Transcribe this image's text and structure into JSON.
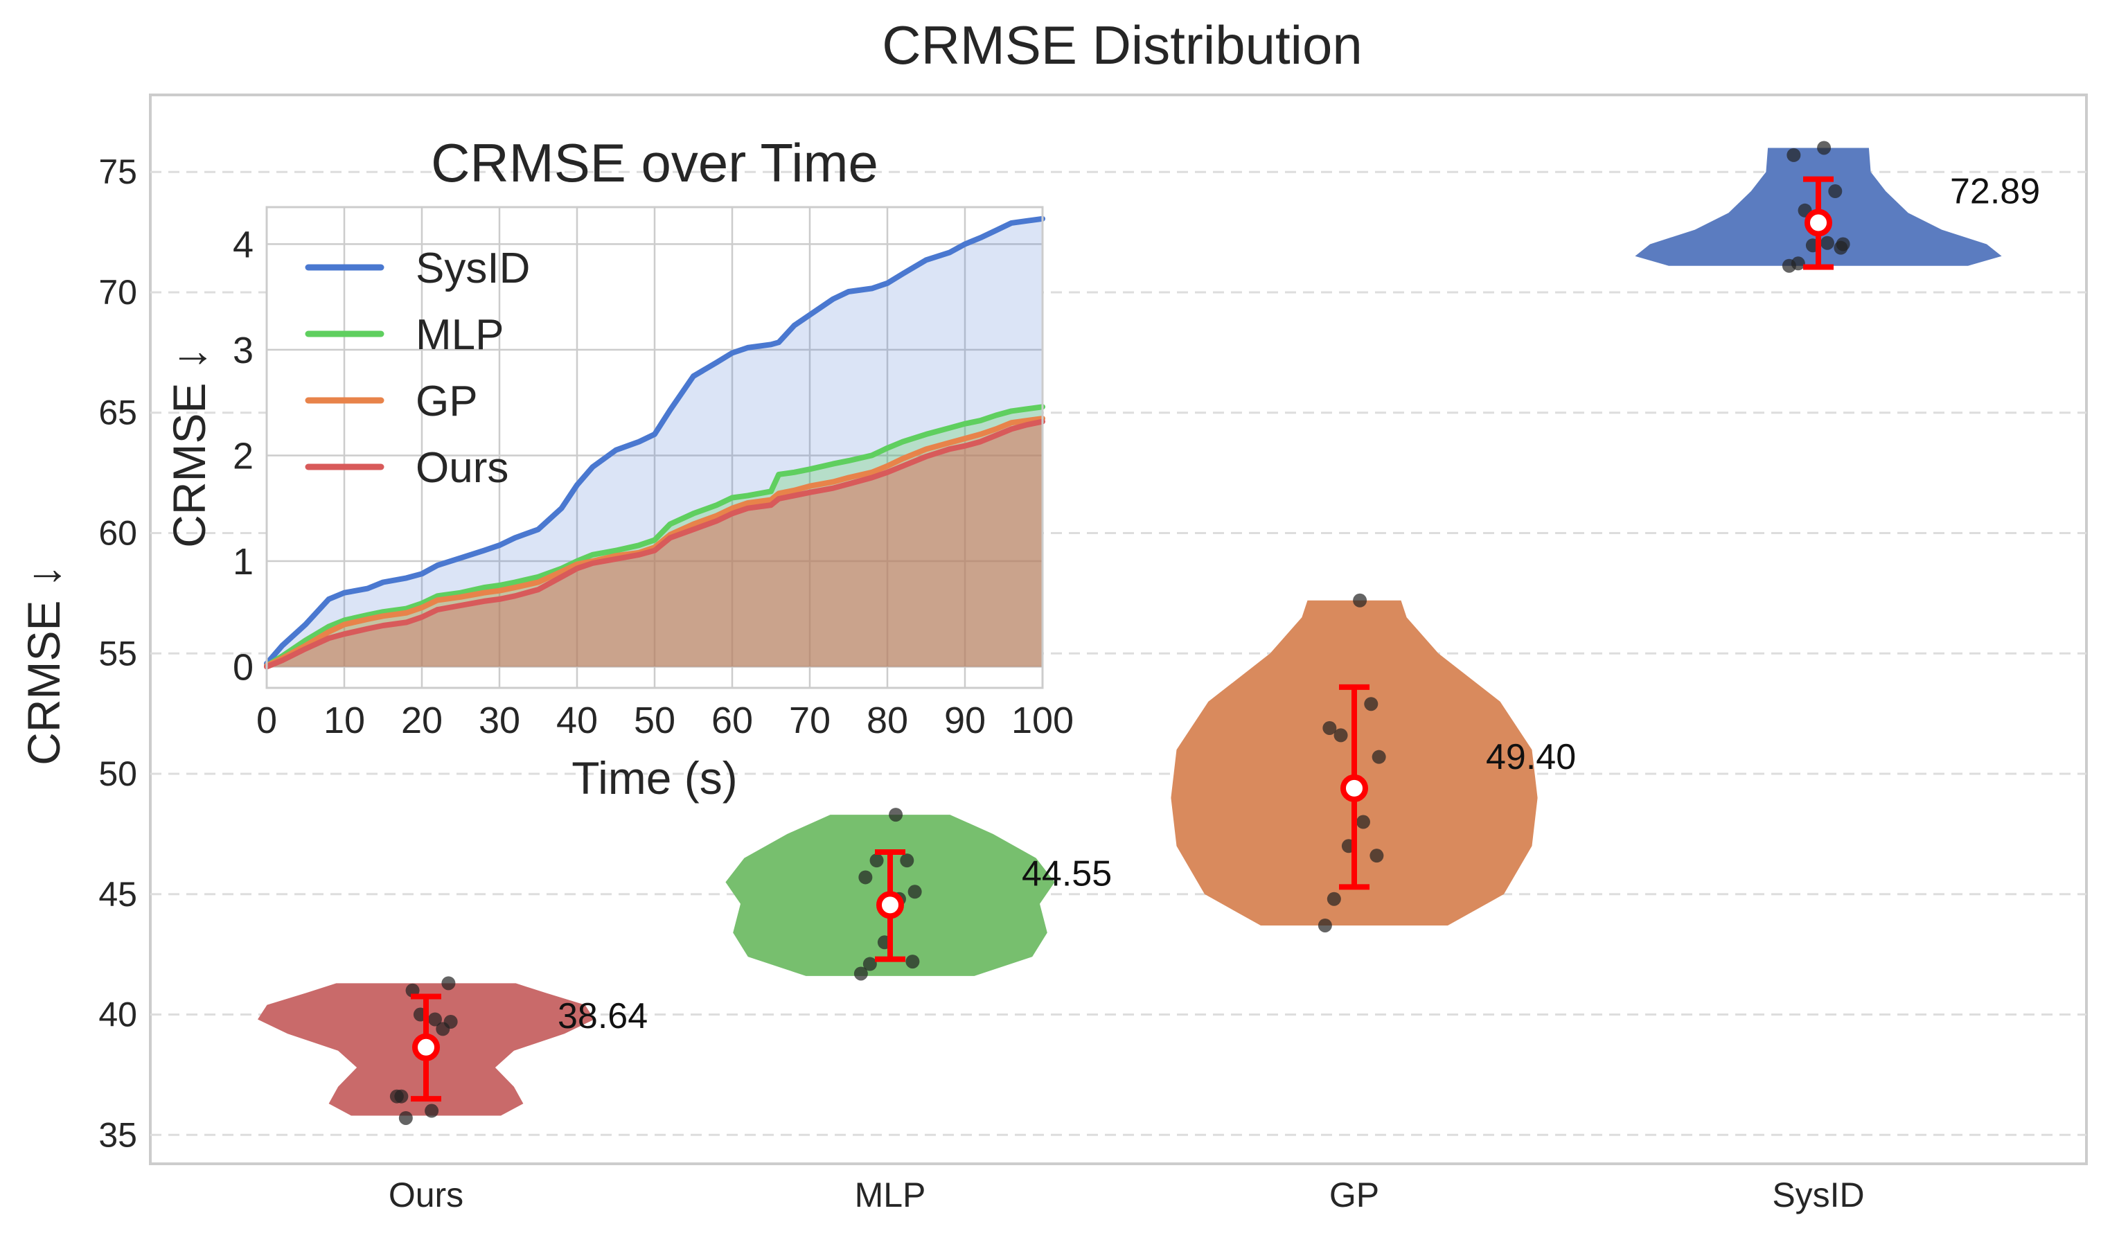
{
  "chart_data": [
    {
      "type": "violin",
      "title": "CRMSE Distribution",
      "xlabel": "",
      "ylabel": "CRMSE ↓",
      "categories": [
        "Ours",
        "MLP",
        "GP",
        "SysID"
      ],
      "ylim": [
        33.8,
        78.2
      ],
      "yticks": [
        35,
        40,
        45,
        50,
        55,
        60,
        65,
        70,
        75
      ],
      "grid": "y-dashed",
      "colors": [
        "#c96a6a",
        "#77bf6e",
        "#d98a5d",
        "#5b7cc0"
      ],
      "errorbar_color": "#ff0000",
      "violins": [
        {
          "name": "Ours",
          "mean": 38.64,
          "label": "38.64",
          "err_low": 36.5,
          "err_high": 40.75,
          "points": [
            36.6,
            35.7,
            41.3,
            40.0,
            39.8,
            39.7,
            41.0,
            39.4,
            36.6,
            36.0
          ],
          "shape": [
            [
              35.8,
              0.4
            ],
            [
              36.3,
              0.52
            ],
            [
              37.0,
              0.47
            ],
            [
              37.8,
              0.37
            ],
            [
              38.5,
              0.47
            ],
            [
              39.2,
              0.74
            ],
            [
              39.8,
              0.9
            ],
            [
              40.4,
              0.85
            ],
            [
              40.9,
              0.64
            ],
            [
              41.3,
              0.48
            ]
          ]
        },
        {
          "name": "MLP",
          "mean": 44.55,
          "label": "44.55",
          "err_low": 42.3,
          "err_high": 46.75,
          "points": [
            41.7,
            42.1,
            42.2,
            43.0,
            44.8,
            45.1,
            46.4,
            46.4,
            45.7,
            48.3
          ],
          "shape": [
            [
              41.6,
              0.45
            ],
            [
              42.4,
              0.76
            ],
            [
              43.4,
              0.84
            ],
            [
              44.6,
              0.8
            ],
            [
              45.5,
              0.88
            ],
            [
              46.5,
              0.78
            ],
            [
              47.5,
              0.55
            ],
            [
              48.3,
              0.32
            ]
          ]
        },
        {
          "name": "GP",
          "mean": 49.4,
          "label": "49.40",
          "err_low": 45.3,
          "err_high": 53.6,
          "points": [
            43.7,
            44.8,
            46.6,
            47.0,
            48.0,
            50.7,
            51.6,
            52.9,
            51.9,
            57.2
          ],
          "shape": [
            [
              43.7,
              0.5
            ],
            [
              45.0,
              0.8
            ],
            [
              47.0,
              0.95
            ],
            [
              49.0,
              0.98
            ],
            [
              51.0,
              0.95
            ],
            [
              53.0,
              0.78
            ],
            [
              55.0,
              0.45
            ],
            [
              56.5,
              0.28
            ],
            [
              57.2,
              0.25
            ]
          ]
        },
        {
          "name": "SysID",
          "mean": 72.89,
          "label": "72.89",
          "err_low": 71.05,
          "err_high": 74.7,
          "points": [
            71.1,
            71.2,
            71.85,
            71.95,
            72.05,
            72.0,
            73.4,
            74.2,
            75.7,
            76.0
          ],
          "shape": [
            [
              71.1,
              0.8
            ],
            [
              71.5,
              0.98
            ],
            [
              72.0,
              0.9
            ],
            [
              72.6,
              0.66
            ],
            [
              73.3,
              0.48
            ],
            [
              74.2,
              0.36
            ],
            [
              75.0,
              0.28
            ],
            [
              76.0,
              0.27
            ]
          ]
        }
      ]
    },
    {
      "type": "area",
      "title": "CRMSE over Time",
      "xlabel": "Time (s)",
      "ylabel": "CRMSE ↓",
      "xlim": [
        0,
        100
      ],
      "ylim": [
        -0.2,
        4.35
      ],
      "xticks": [
        0,
        10,
        20,
        30,
        40,
        50,
        60,
        70,
        80,
        90,
        100
      ],
      "yticks": [
        0,
        1,
        2,
        3,
        4
      ],
      "grid": true,
      "legend": "top-left",
      "x": [
        0,
        2,
        5,
        8,
        10,
        13,
        15,
        18,
        20,
        22,
        25,
        28,
        30,
        32,
        35,
        38,
        40,
        42,
        45,
        48,
        50,
        52,
        55,
        58,
        60,
        62,
        65,
        66,
        68,
        70,
        73,
        75,
        78,
        80,
        82,
        85,
        88,
        90,
        92,
        94,
        96,
        98,
        100
      ],
      "series": [
        {
          "name": "SysID",
          "color": "#4a78d0",
          "values": [
            0.03,
            0.2,
            0.4,
            0.64,
            0.7,
            0.74,
            0.8,
            0.84,
            0.88,
            0.96,
            1.03,
            1.1,
            1.15,
            1.22,
            1.3,
            1.5,
            1.72,
            1.89,
            2.05,
            2.13,
            2.2,
            2.43,
            2.75,
            2.88,
            2.97,
            3.02,
            3.05,
            3.07,
            3.23,
            3.33,
            3.48,
            3.55,
            3.58,
            3.63,
            3.72,
            3.85,
            3.92,
            4.0,
            4.06,
            4.13,
            4.2,
            4.22,
            4.24
          ]
        },
        {
          "name": "MLP",
          "color": "#5fcf5f",
          "values": [
            0.01,
            0.1,
            0.25,
            0.38,
            0.44,
            0.49,
            0.52,
            0.55,
            0.6,
            0.67,
            0.7,
            0.75,
            0.77,
            0.8,
            0.85,
            0.93,
            1.0,
            1.06,
            1.1,
            1.15,
            1.2,
            1.35,
            1.45,
            1.53,
            1.6,
            1.62,
            1.66,
            1.82,
            1.84,
            1.87,
            1.92,
            1.95,
            2.0,
            2.07,
            2.13,
            2.2,
            2.26,
            2.3,
            2.33,
            2.38,
            2.42,
            2.44,
            2.46
          ]
        },
        {
          "name": "GP",
          "color": "#e8834a",
          "values": [
            0.01,
            0.08,
            0.2,
            0.33,
            0.4,
            0.45,
            0.48,
            0.51,
            0.56,
            0.63,
            0.66,
            0.7,
            0.72,
            0.75,
            0.8,
            0.9,
            0.97,
            1.0,
            1.05,
            1.08,
            1.13,
            1.25,
            1.35,
            1.43,
            1.5,
            1.55,
            1.58,
            1.64,
            1.67,
            1.71,
            1.75,
            1.79,
            1.84,
            1.9,
            1.97,
            2.06,
            2.12,
            2.16,
            2.2,
            2.25,
            2.31,
            2.33,
            2.35
          ]
        },
        {
          "name": "Ours",
          "color": "#d85a5a",
          "values": [
            0.0,
            0.06,
            0.17,
            0.27,
            0.31,
            0.36,
            0.39,
            0.42,
            0.47,
            0.54,
            0.58,
            0.62,
            0.64,
            0.67,
            0.73,
            0.85,
            0.93,
            0.98,
            1.02,
            1.06,
            1.1,
            1.22,
            1.3,
            1.38,
            1.45,
            1.5,
            1.53,
            1.59,
            1.62,
            1.65,
            1.69,
            1.73,
            1.79,
            1.84,
            1.9,
            1.99,
            2.06,
            2.09,
            2.13,
            2.19,
            2.25,
            2.29,
            2.32
          ]
        }
      ]
    }
  ]
}
